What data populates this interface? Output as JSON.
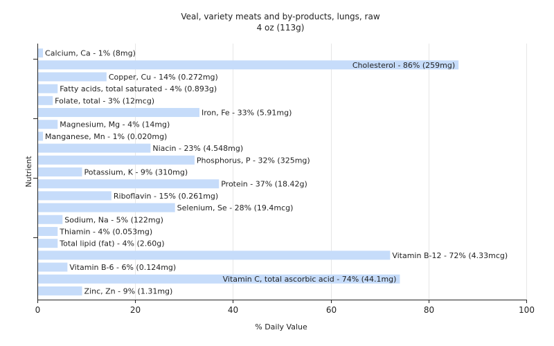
{
  "chart_data": {
    "type": "bar",
    "orientation": "horizontal",
    "title": "Veal, variety meats and by-products, lungs, raw",
    "subtitle": "4 oz (113g)",
    "xlabel": "% Daily Value",
    "ylabel": "Nutrient",
    "xlim": [
      0,
      100
    ],
    "xticks": [
      0,
      20,
      40,
      60,
      80,
      100
    ],
    "grid": true,
    "bar_color": "#c6dcfa",
    "categories": [
      "Calcium, Ca",
      "Cholesterol",
      "Copper, Cu",
      "Fatty acids, total saturated",
      "Folate, total",
      "Iron, Fe",
      "Magnesium, Mg",
      "Manganese, Mn",
      "Niacin",
      "Phosphorus, P",
      "Potassium, K",
      "Protein",
      "Riboflavin",
      "Selenium, Se",
      "Sodium, Na",
      "Thiamin",
      "Total lipid (fat)",
      "Vitamin B-12",
      "Vitamin B-6",
      "Vitamin C, total ascorbic acid",
      "Zinc, Zn"
    ],
    "values": [
      1,
      86,
      14,
      4,
      3,
      33,
      4,
      1,
      23,
      32,
      9,
      37,
      15,
      28,
      5,
      4,
      4,
      72,
      6,
      74,
      9
    ],
    "labels": [
      "Calcium, Ca - 1% (8mg)",
      "Cholesterol - 86% (259mg)",
      "Copper, Cu - 14% (0.272mg)",
      "Fatty acids, total saturated - 4% (0.893g)",
      "Folate, total - 3% (12mcg)",
      "Iron, Fe - 33% (5.91mg)",
      "Magnesium, Mg - 4% (14mg)",
      "Manganese, Mn - 1% (0.020mg)",
      "Niacin - 23% (4.548mg)",
      "Phosphorus, P - 32% (325mg)",
      "Potassium, K - 9% (310mg)",
      "Protein - 37% (18.42g)",
      "Riboflavin - 15% (0.261mg)",
      "Selenium, Se - 28% (19.4mcg)",
      "Sodium, Na - 5% (122mg)",
      "Thiamin - 4% (0.053mg)",
      "Total lipid (fat) - 4% (2.60g)",
      "Vitamin B-12 - 72% (4.33mcg)",
      "Vitamin B-6 - 6% (0.124mg)",
      "Vitamin C, total ascorbic acid - 74% (44.1mg)",
      "Zinc, Zn - 9% (1.31mg)"
    ],
    "label_inside_bar": [
      false,
      true,
      false,
      false,
      false,
      false,
      false,
      false,
      false,
      false,
      false,
      false,
      false,
      false,
      false,
      false,
      false,
      false,
      false,
      true,
      false
    ]
  }
}
